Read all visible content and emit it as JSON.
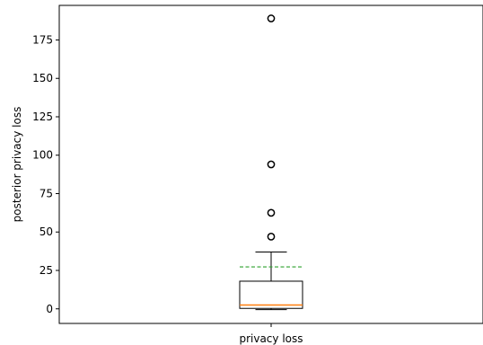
{
  "chart_data": {
    "type": "box",
    "xlabel": "privacy loss",
    "ylabel": "posterior privacy loss",
    "categories": [
      "privacy loss"
    ],
    "ylim": [
      -9.5,
      197.5
    ],
    "yticks": [
      0,
      25,
      50,
      75,
      100,
      125,
      150,
      175
    ],
    "grid": false,
    "boxes": [
      {
        "label": "privacy loss",
        "whisker_low": -0.5,
        "q1": 0.3,
        "median": 2.5,
        "q3": 18,
        "whisker_high": 37,
        "mean": 27.3,
        "outliers": [
          47,
          62.5,
          94,
          189
        ]
      }
    ],
    "colors": {
      "box": "#000000",
      "median": "#ff7f0e",
      "mean": "#2ca02c",
      "outlier": "#000000"
    }
  }
}
